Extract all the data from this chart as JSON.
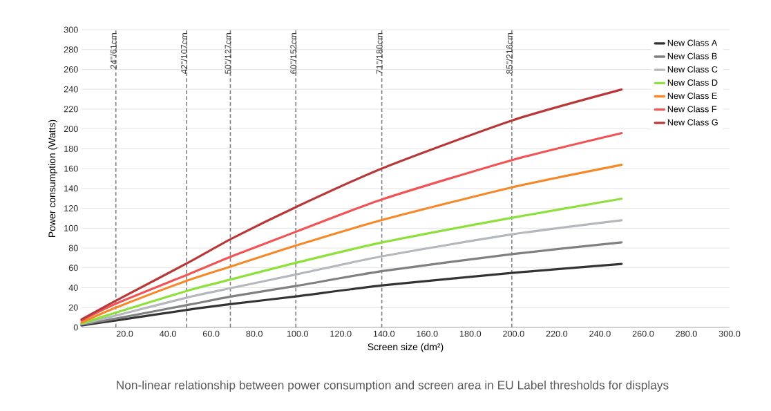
{
  "chart_data": {
    "type": "line",
    "title": "Non-linear relationship between power consumption and screen area in EU Label thresholds for displays",
    "xlabel": "Screen size (dm²)",
    "ylabel": "Power consumption (Watts)",
    "x": [
      0,
      16,
      50,
      70,
      100,
      140,
      200,
      250
    ],
    "series": [
      {
        "name": "New Class A",
        "color": "#333333",
        "values": [
          2,
          7,
          18,
          23.7,
          31.4,
          42.5,
          55,
          64
        ]
      },
      {
        "name": "New Class B",
        "color": "#808080",
        "values": [
          3,
          9,
          23,
          31.4,
          42,
          57,
          74,
          85.7
        ]
      },
      {
        "name": "New Class C",
        "color": "#b4b8bc",
        "values": [
          3.5,
          12,
          30.7,
          40,
          53.7,
          72,
          94,
          108
        ]
      },
      {
        "name": "New Class D",
        "color": "#8ee03c",
        "values": [
          4,
          15,
          37.6,
          48.8,
          65.5,
          86,
          110.8,
          129.6
        ]
      },
      {
        "name": "New Class E",
        "color": "#f5892a",
        "values": [
          5,
          20,
          48,
          62,
          83,
          108.7,
          141.5,
          163.8
        ]
      },
      {
        "name": "New Class F",
        "color": "#f05454",
        "values": [
          7,
          24,
          54,
          72,
          97,
          129.6,
          169,
          195.8
        ]
      },
      {
        "name": "New Class G",
        "color": "#b83838",
        "values": [
          8,
          27,
          66,
          90,
          122,
          161,
          209,
          239.7
        ]
      }
    ],
    "xlim": [
      0,
      300
    ],
    "ylim": [
      0,
      300
    ],
    "xticks": [
      {
        "value": 20,
        "label": "20.0"
      },
      {
        "value": 40,
        "label": "40.0"
      },
      {
        "value": 60,
        "label": "60.0"
      },
      {
        "value": 80,
        "label": "80.0"
      },
      {
        "value": 100,
        "label": "100.0"
      },
      {
        "value": 120,
        "label": "120.0"
      },
      {
        "value": 140,
        "label": "140.0"
      },
      {
        "value": 160,
        "label": "160.0"
      },
      {
        "value": 180,
        "label": "180.0"
      },
      {
        "value": 200,
        "label": "200.0"
      },
      {
        "value": 220,
        "label": "220.0"
      },
      {
        "value": 240,
        "label": "240.0"
      },
      {
        "value": 260,
        "label": "260.0"
      },
      {
        "value": 280,
        "label": "280.0"
      },
      {
        "value": 300,
        "label": "300.0"
      }
    ],
    "yticks": [
      0,
      20,
      40,
      60,
      80,
      100,
      120,
      140,
      160,
      180,
      200,
      220,
      240,
      260,
      280,
      300
    ],
    "ref_lines": [
      {
        "axis": "x",
        "value": 15.9,
        "label": "24\"/61cm",
        "color": "#808080",
        "line_style": "dashed"
      },
      {
        "axis": "x",
        "value": 48.6,
        "label": "42\"/107cm",
        "color": "#808080",
        "line_style": "dashed"
      },
      {
        "axis": "x",
        "value": 68.9,
        "label": "50\"/127cm",
        "color": "#808080",
        "line_style": "dashed"
      },
      {
        "axis": "x",
        "value": 99.2,
        "label": "60\"/152cm",
        "color": "#808080",
        "line_style": "dashed"
      },
      {
        "axis": "x",
        "value": 139.0,
        "label": "71\"/180cm",
        "color": "#808080",
        "line_style": "dashed"
      },
      {
        "axis": "x",
        "value": 199.2,
        "label": "85\"/216cm",
        "color": "#808080",
        "line_style": "dashed"
      }
    ],
    "grid": "y",
    "legend": "top right"
  }
}
